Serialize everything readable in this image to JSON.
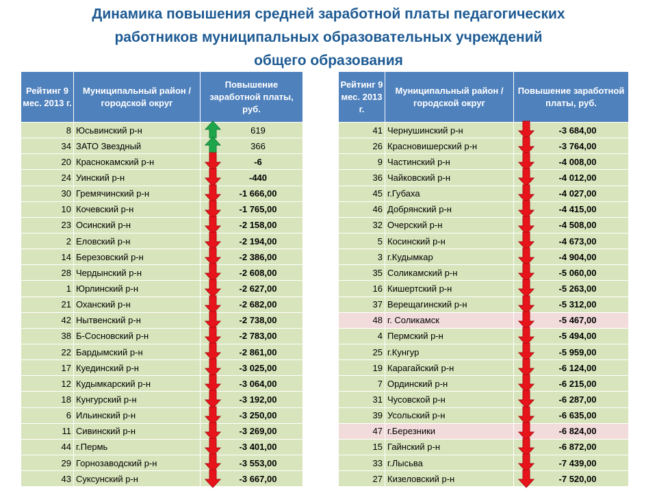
{
  "title_lines": [
    "Динамика  повышения средней заработной платы педагогических",
    "работников муниципальных образовательных учреждений",
    "общего образования"
  ],
  "tables": [
    {
      "headers": [
        "Рейтинг 9 мес. 2013 г.",
        "Муниципальный район / городской округ",
        "Повышение заработной платы, руб."
      ],
      "rows": [
        [
          "8",
          "Юсьвинский р-н",
          "619"
        ],
        [
          "34",
          "ЗАТО Звездный",
          "366"
        ],
        [
          "20",
          "Краснокамский р-н",
          "-6"
        ],
        [
          "24",
          "Уинский р-н",
          "-440"
        ],
        [
          "30",
          "Гремячинский р-н",
          "-1 666,00"
        ],
        [
          "10",
          "Кочевский р-н",
          "-1 765,00"
        ],
        [
          "23",
          "Осинский р-н",
          "-2 158,00"
        ],
        [
          "2",
          "Еловский р-н",
          "-2 194,00"
        ],
        [
          "14",
          "Березовский р-н",
          "-2 386,00"
        ],
        [
          "28",
          "Чердынский р-н",
          "-2 608,00"
        ],
        [
          "1",
          "Юрлинский р-н",
          "-2 627,00"
        ],
        [
          "21",
          "Оханский р-н",
          "-2 682,00"
        ],
        [
          "42",
          "Нытвенский р-н",
          "-2 738,00"
        ],
        [
          "38",
          "Б-Сосновский р-н",
          "-2 783,00"
        ],
        [
          "22",
          "Бардымский р-н",
          "-2 861,00"
        ],
        [
          "17",
          "Куединский р-н",
          "-3 025,00"
        ],
        [
          "12",
          "Кудымкарский р-н",
          "-3 064,00"
        ],
        [
          "18",
          "Кунгурский р-н",
          "-3 192,00"
        ],
        [
          "6",
          "Ильинский р-н",
          "-3 250,00"
        ],
        [
          "11",
          "Сивинский р-н",
          "-3 269,00"
        ],
        [
          "44",
          "г.Пермь",
          "-3 401,00"
        ],
        [
          "29",
          "Горнозаводский р-н",
          "-3 553,00"
        ],
        [
          "43",
          "Суксунский р-н",
          "-3 667,00"
        ]
      ]
    },
    {
      "headers": [
        "Рейтинг 9 мес. 2013 г.",
        "Муниципальный район / городской округ",
        "Повышение заработной платы, руб."
      ],
      "highlight_rows": [
        12,
        19
      ],
      "rows": [
        [
          "41",
          "Чернушинский р-н",
          "-3 684,00"
        ],
        [
          "26",
          "Красновишерский р-н",
          "-3 764,00"
        ],
        [
          "9",
          "Частинский р-н",
          "-4 008,00"
        ],
        [
          "36",
          "Чайковский р-н",
          "-4 012,00"
        ],
        [
          "45",
          "г.Губаха",
          "-4 027,00"
        ],
        [
          "46",
          "Добрянский р-н",
          "-4 415,00"
        ],
        [
          "32",
          "Очерский р-н",
          "-4 508,00"
        ],
        [
          "5",
          "Косинский р-н",
          "-4 673,00"
        ],
        [
          "3",
          "г.Кудымкар",
          "-4 904,00"
        ],
        [
          "35",
          "Соликамский р-н",
          "-5 060,00"
        ],
        [
          "16",
          "Кишертский р-н",
          "-5 263,00"
        ],
        [
          "37",
          "Верещагинский р-н",
          "-5 312,00"
        ],
        [
          "48",
          "г. Соликамск",
          "-5 467,00"
        ],
        [
          "4",
          "Пермский р-н",
          "-5 494,00"
        ],
        [
          "25",
          "г.Кунгур",
          "-5 959,00"
        ],
        [
          "19",
          "Карагайский р-н",
          "-6 124,00"
        ],
        [
          "7",
          "Ординский р-н",
          "-6 215,00"
        ],
        [
          "31",
          "Чусовской р-н",
          "-6 287,00"
        ],
        [
          "39",
          "Усольский р-н",
          "-6 635,00"
        ],
        [
          "47",
          "г.Березники",
          "-6 824,00"
        ],
        [
          "15",
          "Гайнский р-н",
          "-6 872,00"
        ],
        [
          "33",
          "г.Лысьва",
          "-7 439,00"
        ],
        [
          "27",
          "Кизеловский р-н",
          "-7 520,00"
        ]
      ]
    }
  ]
}
